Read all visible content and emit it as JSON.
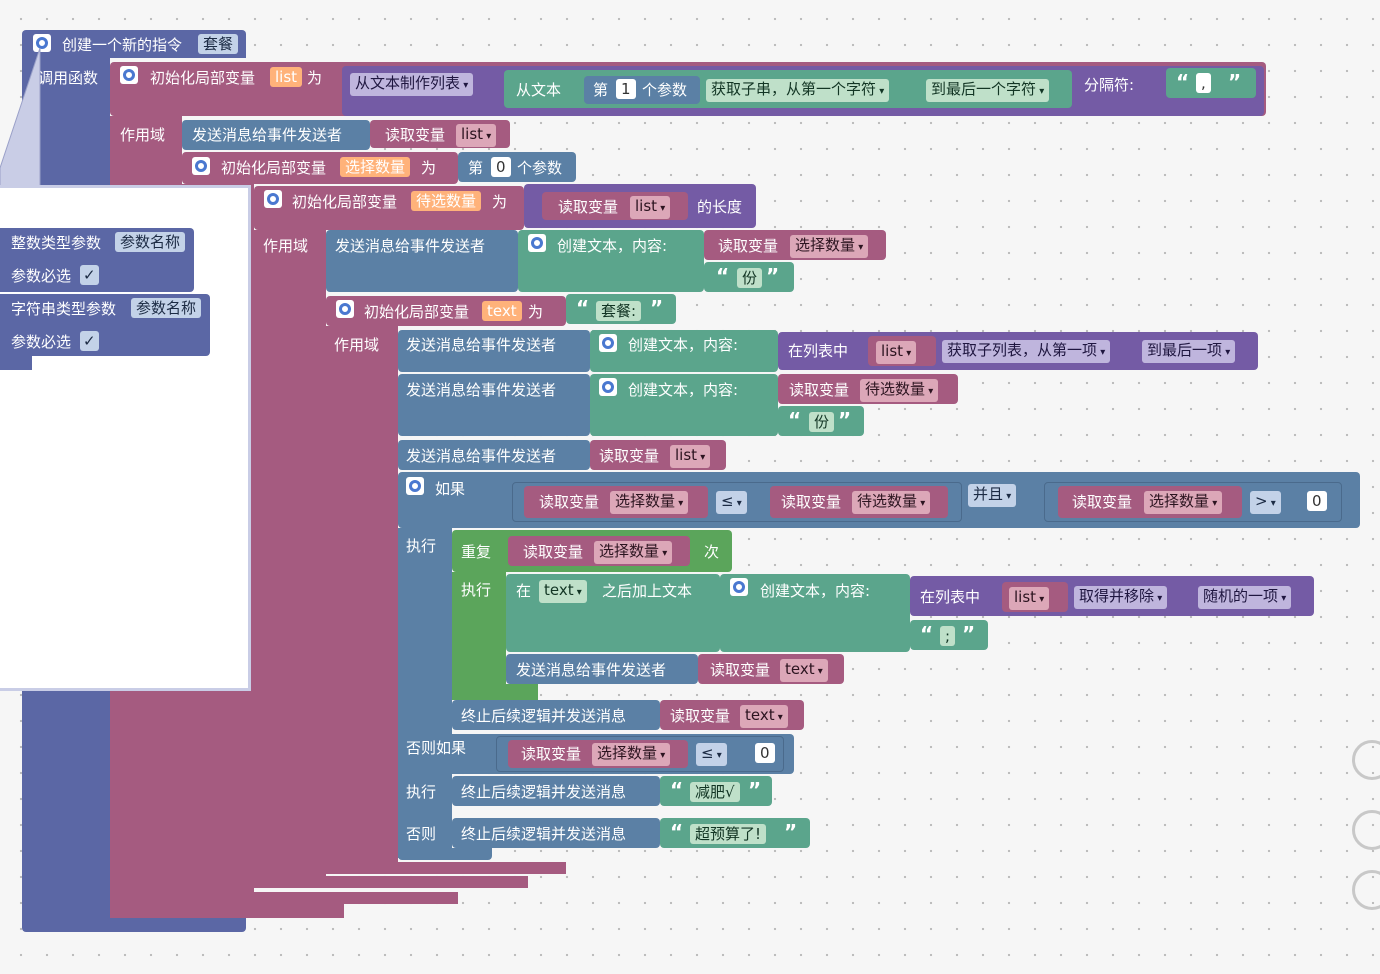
{
  "colors": {
    "procedure": "#5b67a5",
    "variable": "#a55b80",
    "text": "#5ba58c",
    "list": "#745ba5",
    "control": "#5b80a5",
    "loop": "#5ba55b"
  },
  "command": {
    "title": "创建一个新的指令",
    "name": "套餐"
  },
  "call_function": "调用函数",
  "params": {
    "int_type": "整数类型参数",
    "int_name": "参数名称",
    "int_required": "参数必选",
    "str_type": "字符串类型参数",
    "str_name": "参数名称",
    "str_required": "参数必选",
    "check": "✓"
  },
  "labels": {
    "init_local": "初始化局部变量",
    "as": "为",
    "scope": "作用域",
    "send_to_sender": "发送消息给事件发送者",
    "read_var": "读取变量",
    "create_text": "创建文本，内容:",
    "in_list": "在列表中",
    "if": "如果",
    "do": "执行",
    "else_if": "否则如果",
    "else": "否则",
    "repeat": "重复",
    "times": "次",
    "stop_and_send": "终止后续逻辑并发送消息",
    "at": "在",
    "append_text": "之后加上文本",
    "length_of": "的长度",
    "nth": "第",
    "param_unit": "个参数",
    "from_text": "从文本",
    "make_list_from_text": "从文本制作列表",
    "separator": "分隔符:",
    "substring": "获取子串，从第一个字符",
    "to_last_char": "到最后一个字符",
    "sublist": "获取子列表，从第一项",
    "to_last_item": "到最后一项",
    "get_and_remove": "取得并移除",
    "random_item": "随机的一项",
    "and": "并且",
    "lte": "≤",
    "gt": ">"
  },
  "vars": {
    "list": "list",
    "choose": "选择数量",
    "candidate": "待选数量",
    "text": "text"
  },
  "values": {
    "one": "1",
    "zero": "0",
    "comma": ",",
    "semicolon": ";",
    "portion": "份",
    "meal_prefix": "套餐:",
    "diet": "减肥√",
    "over_budget": "超预算了!"
  },
  "icons": [
    "gear-icon",
    "zoom-reset-icon",
    "zoom-in-icon",
    "zoom-out-icon"
  ]
}
